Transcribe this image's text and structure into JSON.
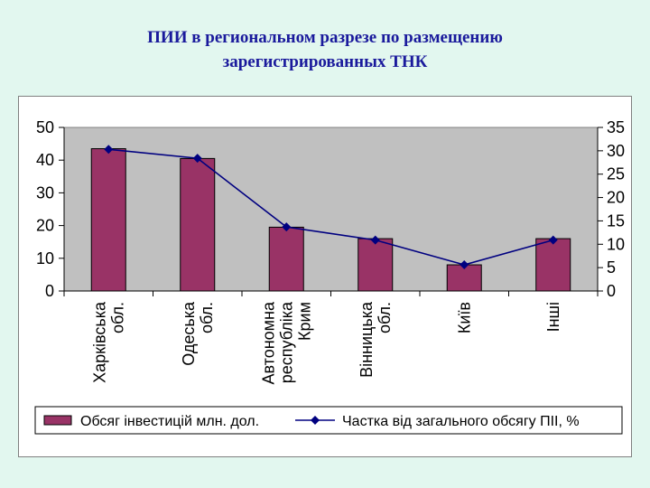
{
  "slide": {
    "title_line1": "ПИИ в региональном разрезе по размещению",
    "title_line2": "зарегистрированных ТНК"
  },
  "chart_data": {
    "type": "bar",
    "categories": [
      [
        "Харківська",
        "обл."
      ],
      [
        "Одеська",
        "обл."
      ],
      [
        "Автономна",
        "республіка",
        "Крим"
      ],
      [
        "Вінницька",
        "обл."
      ],
      [
        "Київ"
      ],
      [
        "Інші"
      ]
    ],
    "series": [
      {
        "name": "Обсяг інвестицій млн. дол.",
        "type": "bar",
        "axis": "left",
        "values": [
          43.5,
          40.5,
          19.5,
          16,
          8,
          16
        ]
      },
      {
        "name": "Частка від загального обсягу ПІІ, %",
        "type": "line",
        "axis": "right",
        "values": [
          30.3,
          28.4,
          13.7,
          10.9,
          5.6,
          10.9
        ]
      }
    ],
    "y_left": {
      "ticks": [
        "0",
        "10",
        "20",
        "30",
        "40",
        "50"
      ],
      "ylim": [
        0,
        50
      ]
    },
    "y_right": {
      "ticks": [
        "0",
        "5",
        "10",
        "15",
        "20",
        "25",
        "30",
        "35"
      ],
      "ylim": [
        0,
        35
      ]
    },
    "legend": "bottom",
    "grid": false,
    "colors": {
      "bar_fill": "#993366",
      "line": "#000080",
      "plot_bg": "#c0c0c0"
    }
  }
}
